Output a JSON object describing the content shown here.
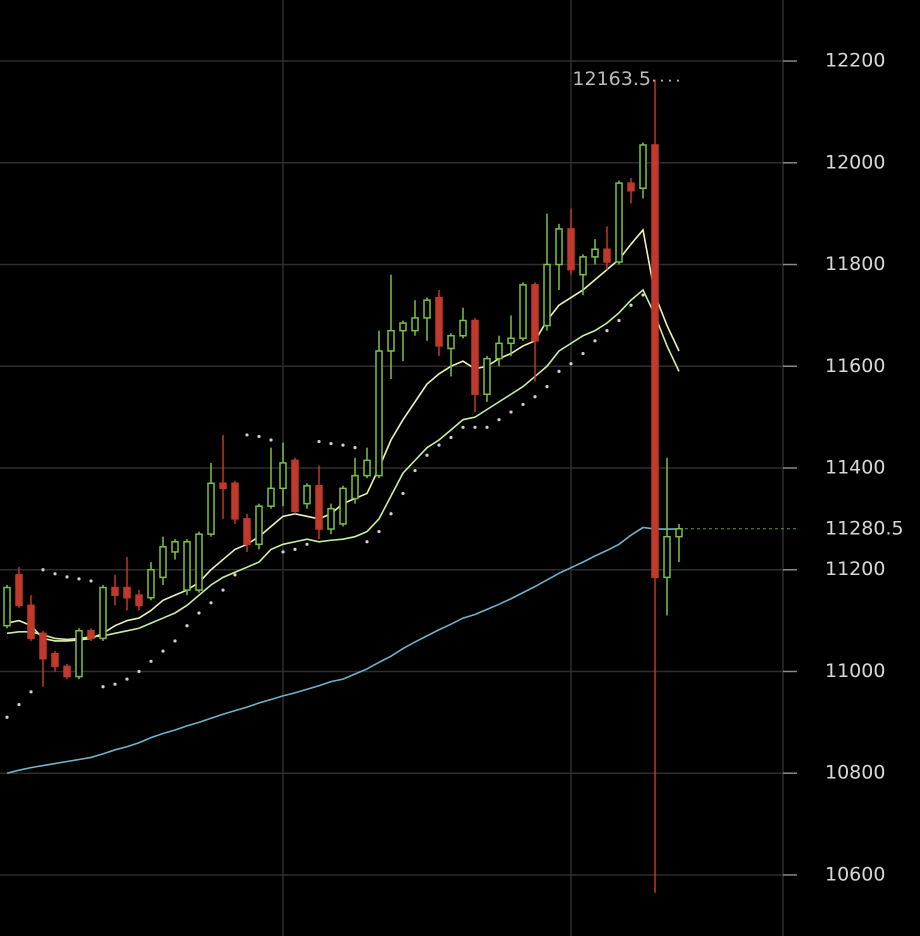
{
  "chart_data": {
    "type": "candlestick",
    "categories": [
      null,
      null,
      null,
      null,
      null,
      null,
      null,
      null,
      null,
      null,
      null,
      null,
      null,
      null,
      null,
      null,
      null,
      null,
      null,
      null,
      null,
      null,
      null,
      null,
      null,
      null,
      null,
      null,
      null,
      null,
      null,
      null,
      null,
      null,
      null,
      null,
      null,
      null,
      null,
      null,
      null,
      null,
      null,
      null,
      null,
      null,
      null,
      null,
      null,
      null,
      null,
      null,
      null,
      null,
      null,
      null,
      null
    ],
    "open": [
      11090,
      11190,
      11130,
      11075,
      11035,
      11010,
      10990,
      11080,
      11065,
      11165,
      11165,
      11150,
      11145,
      11185,
      11235,
      11160,
      11160,
      11270,
      11370,
      11370,
      11300,
      11250,
      11325,
      11360,
      11415,
      11330,
      11365,
      11280,
      11290,
      11340,
      11385,
      11385,
      11630,
      11670,
      11670,
      11695,
      11735,
      11635,
      11660,
      11690,
      11545,
      11615,
      11645,
      11655,
      11760,
      11680,
      11800,
      11870,
      11780,
      11815,
      11830,
      11805,
      11960,
      11950,
      12035,
      11185,
      11265
    ],
    "high": [
      11170,
      11205,
      11150,
      11080,
      11040,
      11015,
      11085,
      11085,
      11170,
      11190,
      11225,
      11160,
      11215,
      11265,
      11260,
      11260,
      11275,
      11410,
      11465,
      11375,
      11310,
      11330,
      11440,
      11450,
      11420,
      11370,
      11405,
      11330,
      11365,
      11420,
      11440,
      11670,
      11780,
      11690,
      11730,
      11735,
      11750,
      11665,
      11715,
      11695,
      11620,
      11660,
      11700,
      11765,
      11765,
      11900,
      11880,
      11910,
      11820,
      11850,
      11875,
      11965,
      11970,
      12040,
      12163.5,
      11420,
      11290
    ],
    "low": [
      11085,
      11125,
      11060,
      10970,
      11000,
      10985,
      10985,
      11060,
      11060,
      11130,
      11120,
      11120,
      11140,
      11170,
      11220,
      11150,
      11155,
      11265,
      11300,
      11290,
      11235,
      11240,
      11320,
      11325,
      11310,
      11320,
      11260,
      11270,
      11285,
      11330,
      11380,
      11380,
      11575,
      11610,
      11660,
      11650,
      11620,
      11580,
      11655,
      11510,
      11530,
      11600,
      11620,
      11650,
      11570,
      11670,
      11750,
      11780,
      11740,
      11800,
      11790,
      11800,
      11920,
      11930,
      10565,
      11110,
      11215
    ],
    "close": [
      11165,
      11130,
      11065,
      11025,
      11010,
      10990,
      11080,
      11065,
      11165,
      11150,
      11145,
      11130,
      11200,
      11245,
      11255,
      11255,
      11270,
      11370,
      11360,
      11300,
      11250,
      11325,
      11360,
      11410,
      11315,
      11365,
      11280,
      11320,
      11360,
      11385,
      11415,
      11630,
      11670,
      11685,
      11695,
      11730,
      11640,
      11660,
      11690,
      11545,
      11615,
      11645,
      11655,
      11760,
      11650,
      11800,
      11870,
      11790,
      11815,
      11830,
      11805,
      11960,
      11945,
      12035,
      11185,
      11265,
      11280.5
    ],
    "up_color": "#7cc242",
    "down_color": "#c0392b",
    "overlays": [
      {
        "color": "#eef5b0",
        "values": [
          11095,
          11100,
          11090,
          11065,
          11060,
          11060,
          11062,
          11065,
          11075,
          11090,
          11100,
          11105,
          11120,
          11140,
          11150,
          11160,
          11175,
          11200,
          11220,
          11240,
          11250,
          11265,
          11285,
          11305,
          11310,
          11305,
          11300,
          11310,
          11330,
          11340,
          11350,
          11400,
          11455,
          11495,
          11530,
          11565,
          11585,
          11600,
          11610,
          11595,
          11600,
          11615,
          11625,
          11640,
          11650,
          11690,
          11720,
          11735,
          11750,
          11770,
          11790,
          11810,
          11840,
          11868,
          11740,
          11680,
          11630
        ]
      },
      {
        "color": "#c9f0a0",
        "values": [
          11075,
          11078,
          11078,
          11072,
          11065,
          11063,
          11065,
          11068,
          11070,
          11075,
          11080,
          11085,
          11095,
          11105,
          11115,
          11130,
          11150,
          11170,
          11185,
          11195,
          11205,
          11215,
          11240,
          11250,
          11255,
          11260,
          11255,
          11258,
          11260,
          11265,
          11275,
          11300,
          11345,
          11390,
          11415,
          11440,
          11455,
          11475,
          11495,
          11500,
          11515,
          11530,
          11545,
          11560,
          11580,
          11600,
          11630,
          11645,
          11660,
          11670,
          11685,
          11705,
          11730,
          11750,
          11700,
          11640,
          11590
        ]
      },
      {
        "color": "#6fb3c9",
        "values": [
          10800,
          10806,
          10811,
          10815,
          10819,
          10823,
          10827,
          10831,
          10838,
          10846,
          10852,
          10860,
          10870,
          10878,
          10885,
          10893,
          10900,
          10908,
          10916,
          10923,
          10930,
          10938,
          10945,
          10952,
          10958,
          10965,
          10972,
          10980,
          10985,
          10995,
          11005,
          11018,
          11030,
          11045,
          11058,
          11070,
          11082,
          11093,
          11105,
          11112,
          11122,
          11132,
          11143,
          11155,
          11167,
          11180,
          11193,
          11204,
          11215,
          11227,
          11238,
          11250,
          11268,
          11283,
          11280,
          11280,
          11280
        ]
      }
    ],
    "sar": {
      "color": "#cfcfcf",
      "values": [
        10910,
        10935,
        10960,
        11200,
        11192,
        11186,
        11182,
        11178,
        10970,
        10975,
        10985,
        11000,
        11020,
        11040,
        11060,
        11090,
        11115,
        11135,
        11160,
        11190,
        11465,
        11462,
        11455,
        11235,
        11240,
        11250,
        11452,
        11448,
        11445,
        11440,
        11255,
        11275,
        11310,
        11350,
        11395,
        11425,
        11445,
        11460,
        11480,
        11480,
        11480,
        11495,
        11510,
        11525,
        11540,
        11560,
        11590,
        11605,
        11625,
        11650,
        11670,
        11690,
        11720,
        11740,
        null,
        null,
        null
      ]
    },
    "ylim": [
      10480,
      12320
    ],
    "yticks": [
      10600,
      10800,
      11000,
      11200,
      11400,
      11600,
      11800,
      12000,
      12200
    ],
    "grid": true
  }
}
